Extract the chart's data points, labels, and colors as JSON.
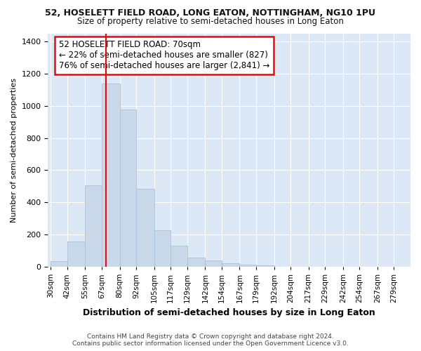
{
  "title1": "52, HOSELETT FIELD ROAD, LONG EATON, NOTTINGHAM, NG10 1PU",
  "title2": "Size of property relative to semi-detached houses in Long Eaton",
  "xlabel": "Distribution of semi-detached houses by size in Long Eaton",
  "ylabel": "Number of semi-detached properties",
  "bar_color": "#c9d9ea",
  "bar_edge_color": "#a8c0d6",
  "property_size": 70,
  "property_line_color": "red",
  "annotation_text": "52 HOSELETT FIELD ROAD: 70sqm\n← 22% of semi-detached houses are smaller (827)\n76% of semi-detached houses are larger (2,841) →",
  "annotation_box_color": "white",
  "annotation_box_edge": "red",
  "footer1": "Contains HM Land Registry data © Crown copyright and database right 2024.",
  "footer2": "Contains public sector information licensed under the Open Government Licence v3.0.",
  "bin_edges": [
    30,
    42,
    55,
    67,
    80,
    92,
    105,
    117,
    129,
    142,
    154,
    167,
    179,
    192,
    204,
    217,
    229,
    242,
    254,
    267,
    279,
    291
  ],
  "counts": [
    35,
    155,
    505,
    1140,
    975,
    485,
    228,
    130,
    58,
    38,
    20,
    15,
    10,
    0,
    0,
    0,
    0,
    0,
    0,
    0,
    0
  ],
  "ylim": [
    0,
    1450
  ],
  "tick_labels": [
    "30sqm",
    "42sqm",
    "55sqm",
    "67sqm",
    "80sqm",
    "92sqm",
    "105sqm",
    "117sqm",
    "129sqm",
    "142sqm",
    "154sqm",
    "167sqm",
    "179sqm",
    "192sqm",
    "204sqm",
    "217sqm",
    "229sqm",
    "242sqm",
    "254sqm",
    "267sqm",
    "279sqm"
  ],
  "tick_positions": [
    30,
    42,
    55,
    67,
    80,
    92,
    105,
    117,
    129,
    142,
    154,
    167,
    179,
    192,
    204,
    217,
    229,
    242,
    254,
    267,
    279
  ],
  "figure_bg": "#ffffff",
  "axes_bg": "#dce8f5",
  "grid_color": "#ffffff",
  "title1_fontsize": 9,
  "title2_fontsize": 8.5
}
